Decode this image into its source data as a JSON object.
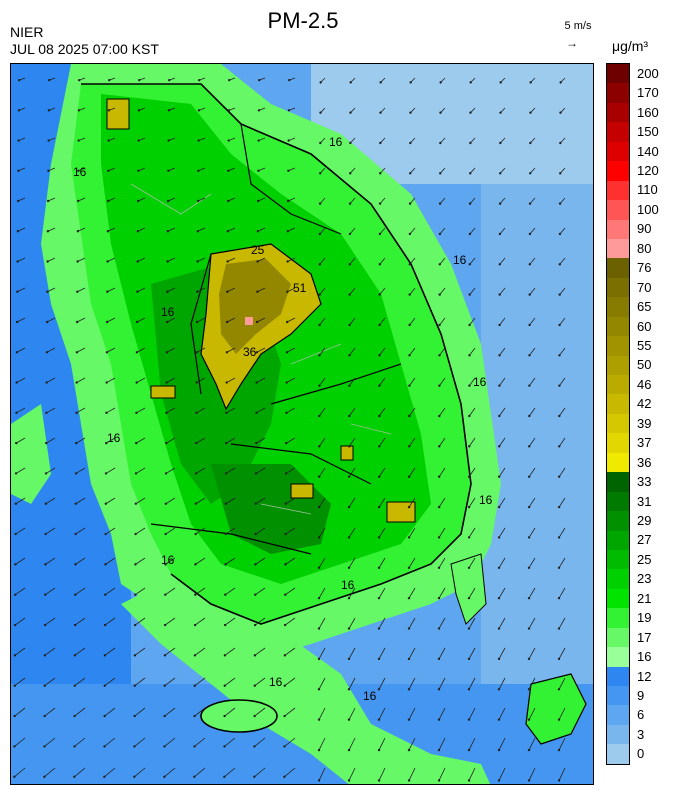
{
  "header": {
    "title": "PM-2.5",
    "agency": "NIER",
    "datetime": "JUL 08 2025 07:00 KST",
    "wind_reference": "5 m/s",
    "wind_arrow_glyph": "→",
    "unit": "μg/m³"
  },
  "legend": {
    "bins": [
      {
        "label": "200",
        "color": "#6e0000"
      },
      {
        "label": "170",
        "color": "#8c0000"
      },
      {
        "label": "160",
        "color": "#a80000"
      },
      {
        "label": "150",
        "color": "#c40000"
      },
      {
        "label": "140",
        "color": "#de0000"
      },
      {
        "label": "120",
        "color": "#ff0000"
      },
      {
        "label": "110",
        "color": "#ff3030"
      },
      {
        "label": "100",
        "color": "#ff5555"
      },
      {
        "label": "90",
        "color": "#ff7777"
      },
      {
        "label": "80",
        "color": "#ff9a9a"
      },
      {
        "label": "76",
        "color": "#6b6100"
      },
      {
        "label": "70",
        "color": "#7a6f00"
      },
      {
        "label": "65",
        "color": "#877b00"
      },
      {
        "label": "60",
        "color": "#948700"
      },
      {
        "label": "55",
        "color": "#a19300"
      },
      {
        "label": "50",
        "color": "#ae9f00"
      },
      {
        "label": "46",
        "color": "#bbab00"
      },
      {
        "label": "42",
        "color": "#c8b800"
      },
      {
        "label": "39",
        "color": "#d5c800"
      },
      {
        "label": "37",
        "color": "#e2d800"
      },
      {
        "label": "36",
        "color": "#f0ea00"
      },
      {
        "label": "33",
        "color": "#006400"
      },
      {
        "label": "31",
        "color": "#007a00"
      },
      {
        "label": "29",
        "color": "#009000"
      },
      {
        "label": "27",
        "color": "#00a600"
      },
      {
        "label": "25",
        "color": "#00bb00"
      },
      {
        "label": "23",
        "color": "#00cf00"
      },
      {
        "label": "21",
        "color": "#00e400"
      },
      {
        "label": "19",
        "color": "#33f233"
      },
      {
        "label": "17",
        "color": "#66f866"
      },
      {
        "label": "16",
        "color": "#99ff99"
      },
      {
        "label": "12",
        "color": "#2e86f0"
      },
      {
        "label": "9",
        "color": "#4596f0"
      },
      {
        "label": "6",
        "color": "#5ea6f0"
      },
      {
        "label": "3",
        "color": "#7ab6ee"
      },
      {
        "label": "0",
        "color": "#9ccbee"
      }
    ]
  },
  "map": {
    "contour_labels": [
      "16",
      "16",
      "16",
      "16",
      "16",
      "16",
      "16",
      "16",
      "16",
      "16",
      "16",
      "25",
      "51",
      "36"
    ],
    "colors": {
      "sea_low": "#9ccbee",
      "sea_mid": "#5ea6f0",
      "sea_high": "#2e86f0",
      "coast_band": "#66f866",
      "land_light": "#33f233",
      "land": "#00cf00",
      "land_dark": "#00a600",
      "hotspot": "#c8b800",
      "hotspot_dark": "#948700",
      "peak": "#ff9a9a",
      "outline": "#000000"
    }
  }
}
